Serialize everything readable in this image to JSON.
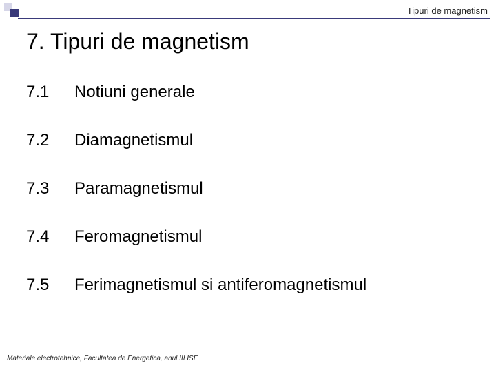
{
  "header": {
    "text": "Tipuri de magnetism"
  },
  "title": "7. Tipuri de magnetism",
  "toc": [
    {
      "num": "7.1",
      "label": "Notiuni generale"
    },
    {
      "num": "7.2",
      "label": "Diamagnetismul"
    },
    {
      "num": "7.3",
      "label": "Paramagnetismul"
    },
    {
      "num": "7.4",
      "label": "Feromagnetismul"
    },
    {
      "num": "7.5",
      "label": "Ferimagnetismul si antiferomagnetismul"
    }
  ],
  "footer": "Materiale electrotehnice, Facultatea de Energetica, anul III ISE",
  "colors": {
    "square_light": "#d6d6e8",
    "square_dark": "#3a3a7a",
    "line": "#3a3a7a",
    "text": "#000000",
    "background": "#ffffff"
  },
  "typography": {
    "header_fontsize": 13,
    "title_fontsize": 32,
    "toc_fontsize": 24,
    "footer_fontsize": 10
  }
}
